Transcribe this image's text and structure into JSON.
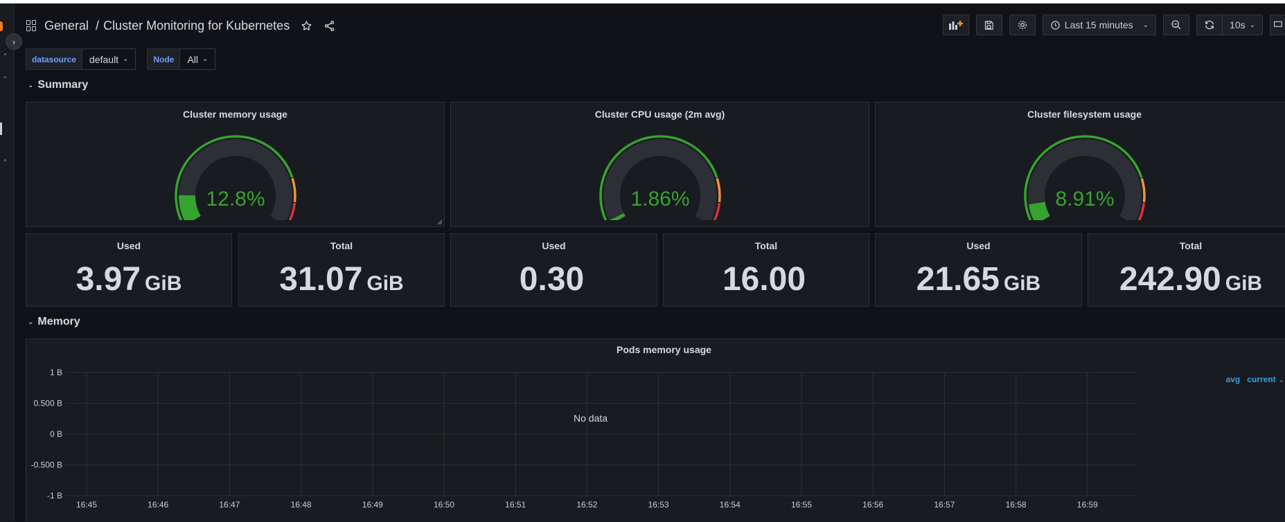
{
  "header": {
    "folder": "General",
    "separator": "/",
    "title": "Cluster Monitoring for Kubernetes"
  },
  "toolbar": {
    "time_range": "Last 15 minutes",
    "refresh_interval": "10s"
  },
  "variables": [
    {
      "label": "datasource",
      "value": "default"
    },
    {
      "label": "Node",
      "value": "All"
    }
  ],
  "rows": {
    "summary": "Summary",
    "memory": "Memory"
  },
  "gauges": [
    {
      "title": "Cluster memory usage",
      "value_text": "12.8%",
      "value": 12.8
    },
    {
      "title": "Cluster CPU usage (2m avg)",
      "value_text": "1.86%",
      "value": 1.86
    },
    {
      "title": "Cluster filesystem usage",
      "value_text": "8.91%",
      "value": 8.91
    }
  ],
  "stats": [
    {
      "title": "Used",
      "value": "3.97",
      "unit": "GiB"
    },
    {
      "title": "Total",
      "value": "31.07",
      "unit": "GiB"
    },
    {
      "title": "Used",
      "value": "0.30",
      "unit": ""
    },
    {
      "title": "Total",
      "value": "16.00",
      "unit": ""
    },
    {
      "title": "Used",
      "value": "21.65",
      "unit": "GiB"
    },
    {
      "title": "Total",
      "value": "242.90",
      "unit": "GiB"
    }
  ],
  "colors": {
    "green": "#37a32f",
    "orange": "#f2933a",
    "red": "#e02f44",
    "track": "#2c2f36",
    "legend": "#33a2e5"
  },
  "chart_data": {
    "type": "line",
    "title": "Pods memory usage",
    "y_ticks": [
      "1 B",
      "0.500 B",
      "0 B",
      "-0.500 B",
      "-1 B"
    ],
    "x_ticks": [
      "16:45",
      "16:46",
      "16:47",
      "16:48",
      "16:49",
      "16:50",
      "16:51",
      "16:52",
      "16:53",
      "16:54",
      "16:55",
      "16:56",
      "16:57",
      "16:58",
      "16:59"
    ],
    "ylim": [
      -1,
      1
    ],
    "grid": true,
    "series": [],
    "no_data_text": "No data",
    "legend": {
      "avg": "avg",
      "current": "current"
    }
  }
}
